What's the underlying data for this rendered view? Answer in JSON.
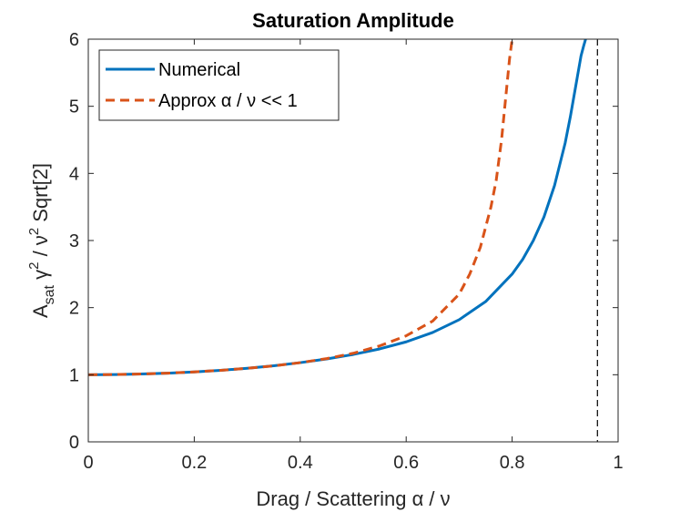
{
  "chart_data": {
    "type": "line",
    "title": "Saturation Amplitude",
    "xlabel": "Drag / Scattering α / ν",
    "ylabel": "A_sat γ² / ν² Sqrt[2]",
    "ylabel_parts": {
      "main": "A",
      "sub": "sat",
      "gamma": " γ",
      "sup1": "2",
      "mid": " / ν",
      "sup2": "2",
      "tail": " Sqrt[2]"
    },
    "xlim": [
      0,
      1
    ],
    "ylim": [
      0,
      6
    ],
    "xticks": [
      0,
      0.2,
      0.4,
      0.6,
      0.8,
      1
    ],
    "xtick_labels": [
      "0",
      "0.2",
      "0.4",
      "0.6",
      "0.8",
      "1"
    ],
    "yticks": [
      0,
      1,
      2,
      3,
      4,
      5,
      6
    ],
    "ytick_labels": [
      "0",
      "1",
      "2",
      "3",
      "4",
      "5",
      "6"
    ],
    "grid": false,
    "legend_position": "top-left",
    "vline": {
      "x": 0.961,
      "style": "dashed",
      "color": "#000000"
    },
    "series": [
      {
        "name": "Numerical",
        "style": "solid",
        "color": "#0072BD",
        "x": [
          0,
          0.05,
          0.1,
          0.15,
          0.2,
          0.25,
          0.3,
          0.35,
          0.4,
          0.45,
          0.5,
          0.55,
          0.6,
          0.65,
          0.7,
          0.75,
          0.8,
          0.82,
          0.84,
          0.86,
          0.88,
          0.9,
          0.91,
          0.92,
          0.93,
          0.935,
          0.9387
        ],
        "y": [
          1.0,
          1.003,
          1.011,
          1.024,
          1.042,
          1.066,
          1.096,
          1.134,
          1.18,
          1.235,
          1.302,
          1.385,
          1.49,
          1.63,
          1.82,
          2.09,
          2.5,
          2.72,
          3.0,
          3.35,
          3.82,
          4.45,
          4.85,
          5.3,
          5.75,
          5.9,
          6.0
        ]
      },
      {
        "name": "Approx α / ν << 1",
        "style": "dashed",
        "color": "#D95319",
        "x": [
          0,
          0.05,
          0.1,
          0.15,
          0.2,
          0.25,
          0.3,
          0.35,
          0.4,
          0.45,
          0.5,
          0.55,
          0.6,
          0.65,
          0.7,
          0.72,
          0.74,
          0.76,
          0.77,
          0.78,
          0.785,
          0.79,
          0.795,
          0.8,
          0.8
        ],
        "y": [
          1.0,
          1.003,
          1.011,
          1.024,
          1.042,
          1.066,
          1.096,
          1.132,
          1.18,
          1.24,
          1.32,
          1.43,
          1.58,
          1.8,
          2.2,
          2.5,
          2.9,
          3.5,
          3.9,
          4.5,
          4.9,
          5.3,
          5.7,
          6.0,
          6.0
        ]
      }
    ]
  }
}
